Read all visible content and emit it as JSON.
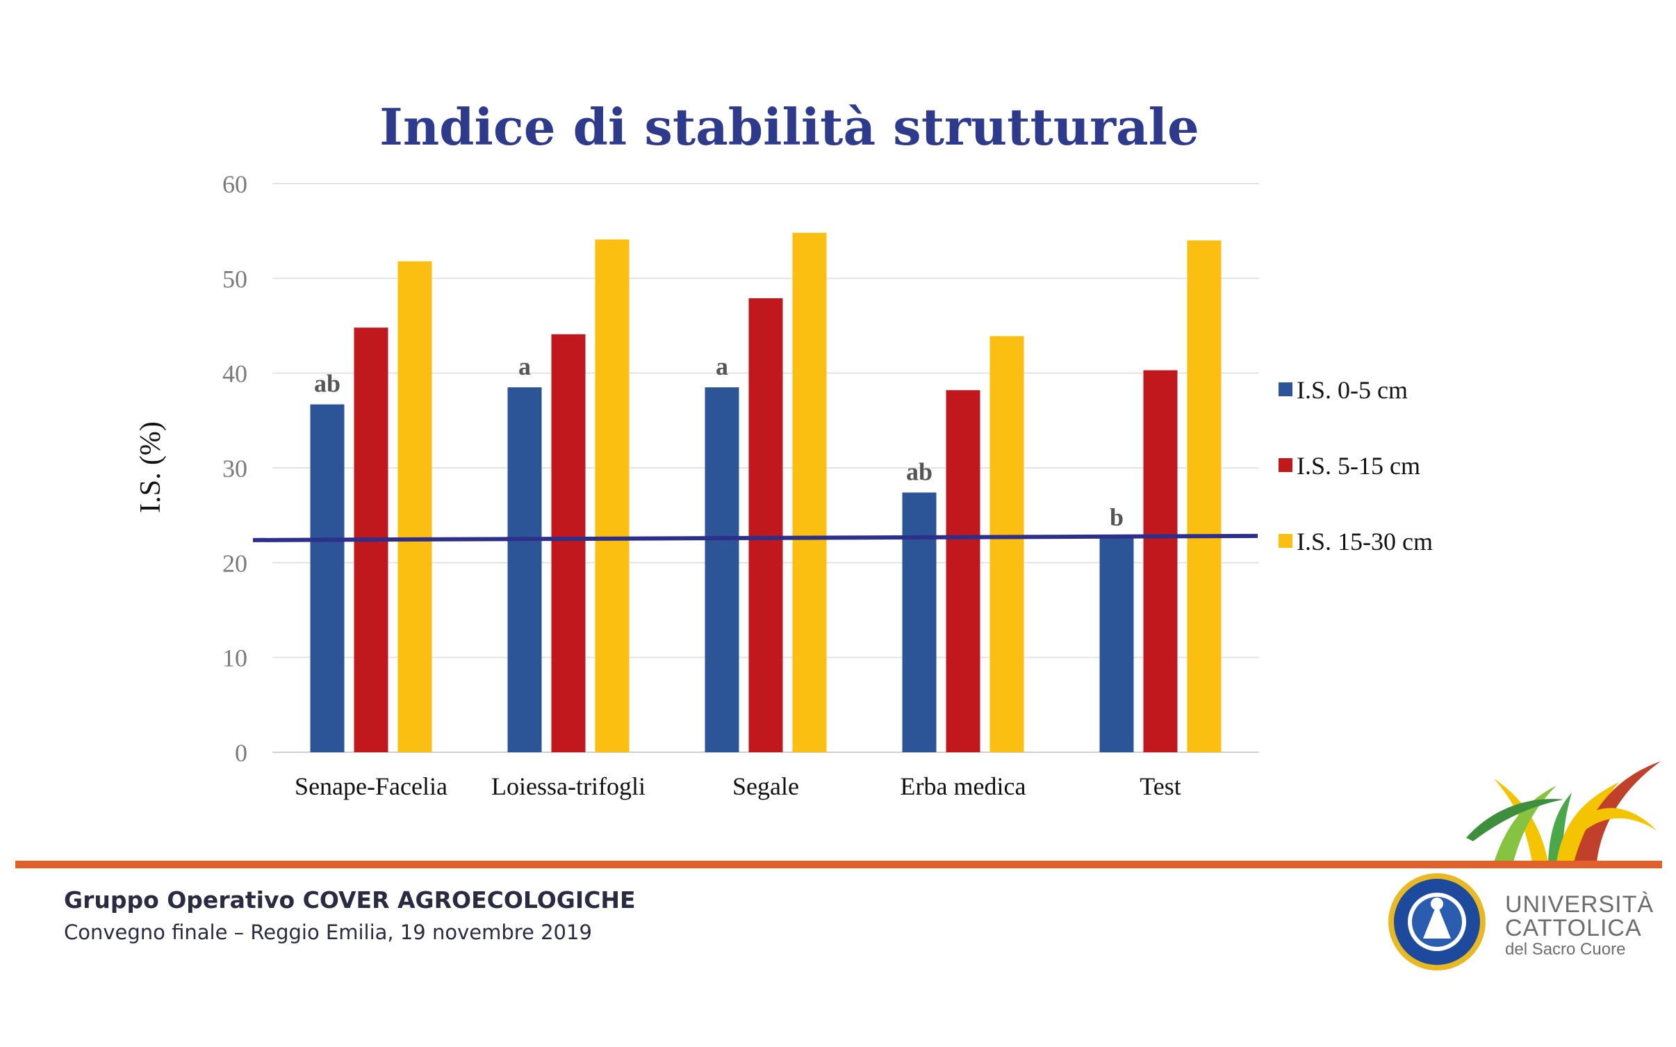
{
  "slide": {
    "footer_title": "Gruppo Operativo COVER AGROECOLOGICHE",
    "footer_subtitle": "Convegno finale – Reggio Emilia, 19 novembre 2019",
    "university_line1": "UNIVERSITÀ",
    "university_line2": "CATTOLICA",
    "university_line3": "del Sacro Cuore",
    "accent_color": "#e0622a",
    "title_color": "#2e3a8c"
  },
  "chart_data": {
    "type": "bar",
    "title": "Indice di stabilità strutturale",
    "xlabel": "",
    "ylabel": "I.S. (%)",
    "ylim": [
      0,
      60
    ],
    "yticks": [
      0,
      10,
      20,
      30,
      40,
      50,
      60
    ],
    "grid": true,
    "legend_position": "right",
    "categories": [
      "Senape-Facelia",
      "Loiessa-trifogli",
      "Segale",
      "Erba medica",
      "Test"
    ],
    "series": [
      {
        "name": "I.S. 0-5 cm",
        "color": "#2c5597",
        "values": [
          36.7,
          38.5,
          38.5,
          27.4,
          22.6
        ]
      },
      {
        "name": "I.S. 5-15 cm",
        "color": "#c0181c",
        "values": [
          44.8,
          44.1,
          47.9,
          38.2,
          40.3
        ]
      },
      {
        "name": "I.S. 15-30 cm",
        "color": "#fbbf12",
        "values": [
          51.8,
          54.1,
          54.8,
          43.9,
          54.0
        ]
      }
    ],
    "annotations": [
      "ab",
      "a",
      "a",
      "ab",
      "b"
    ],
    "reference_line": {
      "value": 22.6,
      "color": "#2d2f8a"
    }
  }
}
